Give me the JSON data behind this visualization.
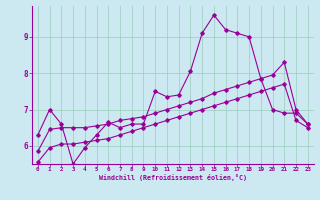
{
  "xlabel": "Windchill (Refroidissement éolien,°C)",
  "background_color": "#cce8f0",
  "grid_color": "#99ccbb",
  "line_color": "#990099",
  "xlim": [
    -0.5,
    23.5
  ],
  "ylim": [
    5.5,
    9.85
  ],
  "xticks": [
    0,
    1,
    2,
    3,
    4,
    5,
    6,
    7,
    8,
    9,
    10,
    11,
    12,
    13,
    14,
    15,
    16,
    17,
    18,
    19,
    20,
    21,
    22,
    23
  ],
  "yticks": [
    6,
    7,
    8,
    9
  ],
  "line1_x": [
    0,
    1,
    2,
    3,
    4,
    5,
    6,
    7,
    8,
    9,
    10,
    11,
    12,
    13,
    14,
    15,
    16,
    17,
    18,
    19,
    20,
    21,
    22,
    23
  ],
  "line1_y": [
    6.3,
    7.0,
    6.6,
    5.5,
    5.95,
    6.3,
    6.65,
    6.5,
    6.6,
    6.6,
    7.5,
    7.35,
    7.4,
    8.05,
    9.1,
    9.6,
    9.2,
    9.1,
    9.0,
    7.85,
    7.0,
    6.9,
    6.9,
    6.6
  ],
  "line2_x": [
    0,
    1,
    2,
    3,
    4,
    5,
    6,
    7,
    8,
    9,
    10,
    11,
    12,
    13,
    14,
    15,
    16,
    17,
    18,
    19,
    20,
    21,
    22,
    23
  ],
  "line2_y": [
    5.85,
    6.45,
    6.5,
    6.5,
    6.5,
    6.55,
    6.6,
    6.7,
    6.75,
    6.8,
    6.9,
    7.0,
    7.1,
    7.2,
    7.3,
    7.45,
    7.55,
    7.65,
    7.75,
    7.85,
    7.95,
    8.3,
    7.0,
    6.6
  ],
  "line3_x": [
    0,
    1,
    2,
    3,
    4,
    5,
    6,
    7,
    8,
    9,
    10,
    11,
    12,
    13,
    14,
    15,
    16,
    17,
    18,
    19,
    20,
    21,
    22,
    23
  ],
  "line3_y": [
    5.55,
    5.95,
    6.05,
    6.05,
    6.1,
    6.15,
    6.2,
    6.3,
    6.4,
    6.5,
    6.6,
    6.7,
    6.8,
    6.9,
    7.0,
    7.1,
    7.2,
    7.3,
    7.4,
    7.5,
    7.6,
    7.7,
    6.7,
    6.5
  ]
}
